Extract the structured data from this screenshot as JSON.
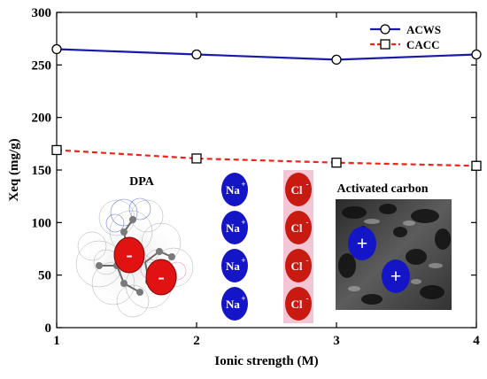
{
  "chart_data": {
    "type": "line",
    "title": "",
    "xlabel": "Ionic strength (M)",
    "ylabel": "Xeq (mg/g)",
    "xlim": [
      1,
      4
    ],
    "ylim": [
      0,
      300
    ],
    "x_ticks": [
      1,
      2,
      3,
      4
    ],
    "y_ticks": [
      0,
      50,
      100,
      150,
      200,
      250,
      300
    ],
    "grid": false,
    "legend_position": "top-right",
    "x": [
      1,
      2,
      3,
      4
    ],
    "series": [
      {
        "name": "ACWS",
        "values": [
          265,
          260,
          255,
          260
        ],
        "color": "#1a1aa8",
        "marker": "circle",
        "line": "solid"
      },
      {
        "name": "CACC",
        "values": [
          169,
          161,
          157,
          154
        ],
        "color": "#e8261c",
        "marker": "square",
        "line": "dashed"
      }
    ]
  },
  "inset": {
    "dpa_label": "DPA",
    "activated_carbon_label": "Activated carbon",
    "cation": {
      "symbol": "Na",
      "charge": "+",
      "count": 4,
      "color": "#1515c8"
    },
    "anion": {
      "symbol": "Cl",
      "charge": "-",
      "count": 4,
      "color": "#c81a10"
    },
    "dpa_charge": "-",
    "carbon_charge": "+"
  }
}
